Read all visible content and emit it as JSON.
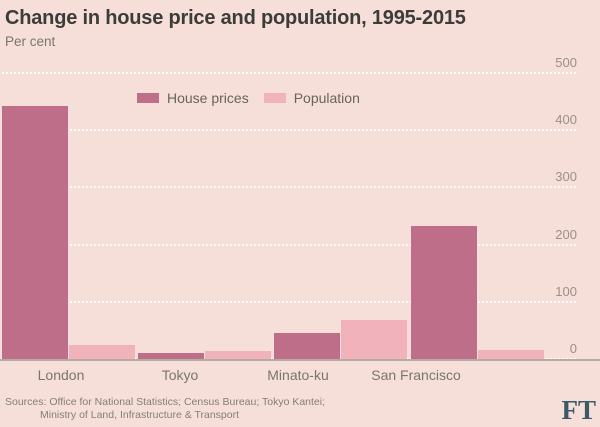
{
  "chart_data": {
    "type": "bar",
    "title": "Change in house price and population, 1995-2015",
    "subtitle": "Per cent",
    "categories": [
      "London",
      "Tokyo",
      "Minato-ku",
      "San Francisco"
    ],
    "series": [
      {
        "name": "House prices",
        "color": "#BE6E88",
        "values": [
          443,
          10,
          46,
          232
        ]
      },
      {
        "name": "Population",
        "color": "#F1B2BB",
        "values": [
          25,
          14,
          68,
          15
        ]
      }
    ],
    "ylim": [
      0,
      500
    ],
    "yticks": [
      0,
      100,
      200,
      300,
      400,
      500
    ],
    "grid": "horizontal-dotted-white",
    "legend_position": "top-inset-left"
  },
  "palette": {
    "background": "#F5DFD8",
    "gridline": "#FFFFFF",
    "axis_line": "#B4ACA2",
    "title_text": "#3C3C3A",
    "muted_text": "#7A766C",
    "tick_text": "#9C9087",
    "brand_text": "#3A5A68"
  },
  "footer": {
    "sources_line1": "Sources: Office for National Statistics; Census Bureau; Tokyo Kantei;",
    "sources_line2": "Ministry of Land, Infrastructure & Transport",
    "brand": "FT"
  }
}
